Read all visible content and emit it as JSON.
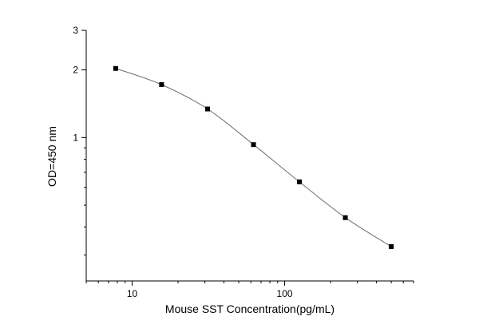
{
  "chart_data": {
    "type": "scatter",
    "title": "",
    "xlabel": "Mouse SST  Concentration(pg/mL)",
    "ylabel": "OD=450 nm",
    "xscale": "log",
    "yscale": "log",
    "xlim": [
      5,
      700
    ],
    "ylim": [
      0.23,
      3
    ],
    "grid": false,
    "legend": "none",
    "x_ticks": [
      {
        "value": 10,
        "label": "10"
      },
      {
        "value": 100,
        "label": "100"
      }
    ],
    "y_ticks": [
      {
        "value": 1,
        "label": "1"
      },
      {
        "value": 2,
        "label": "2"
      },
      {
        "value": 3,
        "label": "3"
      }
    ],
    "series": [
      {
        "x": [
          7.8,
          15.6,
          31.25,
          62.5,
          125,
          250,
          500
        ],
        "y": [
          2.03,
          1.72,
          1.34,
          0.93,
          0.635,
          0.44,
          0.327
        ],
        "color": "#000000",
        "line_color": "#6f6f6f",
        "marker": "square"
      }
    ]
  }
}
